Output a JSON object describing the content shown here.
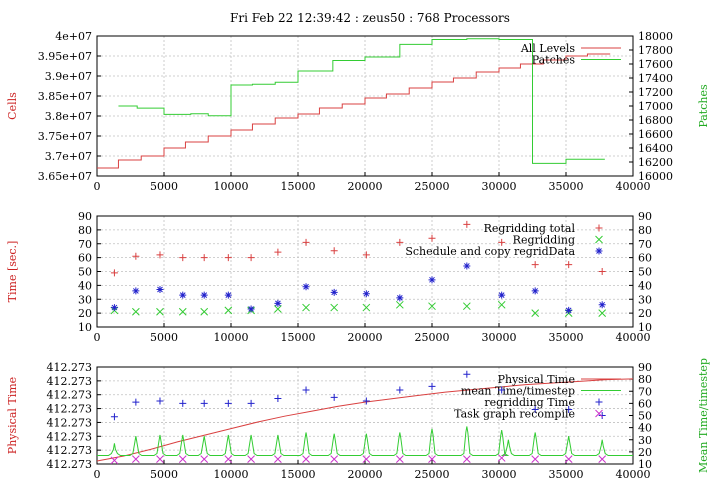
{
  "title": "Fri Feb 22 12:39:42 : zeus50 : 768 Processors",
  "colors": {
    "red": "#d94040",
    "green": "#33cc33",
    "blue": "#2222cc",
    "magenta": "#cc33cc",
    "grid": "#c0c0c0"
  },
  "chart_data": [
    {
      "type": "line",
      "xlim": [
        0,
        40000
      ],
      "xticks": [
        "0",
        "5000",
        "10000",
        "15000",
        "20000",
        "25000",
        "30000",
        "35000",
        "40000"
      ],
      "ylabel": "Cells",
      "y2label": "Patches",
      "ylim": [
        36500000,
        40000000
      ],
      "yticks": [
        "3.65e+07",
        "3.7e+07",
        "3.75e+07",
        "3.8e+07",
        "3.85e+07",
        "3.9e+07",
        "3.95e+07",
        "4e+07"
      ],
      "y2lim": [
        16000,
        18000
      ],
      "y2ticks": [
        "16000",
        "16200",
        "16400",
        "16600",
        "16800",
        "17000",
        "17200",
        "17400",
        "17600",
        "17800",
        "18000"
      ],
      "legend": "top-right",
      "series": [
        {
          "name": "All Levels",
          "axis": "left",
          "step": true,
          "x": [
            0,
            1600,
            3300,
            5000,
            6600,
            8300,
            10000,
            11600,
            13300,
            15000,
            16600,
            18300,
            20000,
            21600,
            23300,
            25000,
            26600,
            28300,
            30000,
            31600,
            33300,
            35000,
            36600,
            38000
          ],
          "y": [
            36700000,
            36900000,
            37000000,
            37200000,
            37350000,
            37500000,
            37650000,
            37800000,
            37950000,
            38050000,
            38200000,
            38300000,
            38450000,
            38550000,
            38700000,
            38850000,
            38950000,
            39100000,
            39200000,
            39300000,
            39400000,
            39500000,
            39550000,
            39550000
          ]
        },
        {
          "name": "Patches",
          "axis": "right",
          "step": true,
          "x": [
            1600,
            3000,
            5000,
            7000,
            8300,
            10000,
            11600,
            13300,
            15000,
            17600,
            20000,
            22600,
            25000,
            27600,
            30000,
            32500,
            35000,
            37600
          ],
          "y": [
            17000,
            16970,
            16880,
            16890,
            16860,
            17300,
            17310,
            17340,
            17500,
            17650,
            17700,
            17880,
            17950,
            17960,
            17950,
            16180,
            16240,
            16240
          ]
        }
      ]
    },
    {
      "type": "scatter",
      "xlim": [
        0,
        40000
      ],
      "xticks": [
        "0",
        "5000",
        "10000",
        "15000",
        "20000",
        "25000",
        "30000",
        "35000",
        "40000"
      ],
      "ylabel": "Time [sec.]",
      "ylim": [
        10,
        90
      ],
      "yticks": [
        "10",
        "20",
        "30",
        "40",
        "50",
        "60",
        "70",
        "80",
        "90"
      ],
      "y2ticks": [
        "10",
        "20",
        "30",
        "40",
        "50",
        "60",
        "70",
        "80",
        "90"
      ],
      "legend": "top-right",
      "series": [
        {
          "name": "Regridding total",
          "marker": "plus",
          "x": [
            1300,
            2900,
            4700,
            6400,
            8000,
            9800,
            11500,
            13500,
            15600,
            17700,
            20100,
            22600,
            25000,
            27600,
            30200,
            32700,
            35200,
            37700
          ],
          "y": [
            49,
            61,
            62,
            60,
            60,
            60,
            60,
            64,
            71,
            65,
            62,
            71,
            74,
            84,
            71,
            55,
            55,
            50
          ]
        },
        {
          "name": "Regridding",
          "marker": "x",
          "x": [
            1300,
            2900,
            4700,
            6400,
            8000,
            9800,
            11500,
            13500,
            15600,
            17700,
            20100,
            22600,
            25000,
            27600,
            30200,
            32700,
            35200,
            37700
          ],
          "y": [
            22,
            21,
            21,
            21,
            21,
            22,
            22,
            23,
            24,
            24,
            24,
            26,
            25,
            25,
            26,
            20,
            20,
            20
          ]
        },
        {
          "name": "Schedule and copy regridData",
          "marker": "star",
          "x": [
            1300,
            2900,
            4700,
            6400,
            8000,
            9800,
            11500,
            13500,
            15600,
            17700,
            20100,
            22600,
            25000,
            27600,
            30200,
            32700,
            35200,
            37700
          ],
          "y": [
            24,
            36,
            37,
            33,
            33,
            33,
            23,
            27,
            39,
            35,
            34,
            31,
            44,
            54,
            33,
            36,
            22,
            26
          ]
        }
      ]
    },
    {
      "type": "line",
      "xlim": [
        0,
        40000
      ],
      "xticks": [
        "0",
        "5000",
        "10000",
        "15000",
        "20000",
        "25000",
        "30000",
        "35000",
        "40000"
      ],
      "ylabel": "Physical Time",
      "yticks": [
        "412.273",
        "412.273",
        "412.273",
        "412.273",
        "412.273",
        "412.273",
        "412.273",
        "412.273"
      ],
      "y2label": "Mean Time/timestep",
      "y2lim": [
        10,
        90
      ],
      "y2ticks": [
        "10",
        "20",
        "30",
        "40",
        "50",
        "60",
        "70",
        "80",
        "90"
      ],
      "legend": "top-right",
      "series": [
        {
          "name": "Physical Time",
          "axis": "left",
          "x": [
            0,
            2000,
            4000,
            6000,
            8000,
            10000,
            12000,
            14000,
            16000,
            18000,
            20000,
            22000,
            24000,
            26000,
            28000,
            30000,
            32000,
            34000,
            36000,
            38000,
            40000
          ],
          "y": [
            0.0,
            0.06,
            0.14,
            0.23,
            0.31,
            0.39,
            0.47,
            0.54,
            0.6,
            0.66,
            0.71,
            0.75,
            0.79,
            0.83,
            0.86,
            0.89,
            0.92,
            0.94,
            0.96,
            0.98,
            0.99
          ]
        },
        {
          "name": "mean Time/timestep",
          "axis": "right",
          "baseline": 17,
          "x": [
            1300,
            2900,
            4700,
            6400,
            8000,
            9800,
            11500,
            13500,
            15600,
            17700,
            20100,
            22600,
            25000,
            27600,
            30200,
            30700,
            32700,
            35200,
            37700
          ],
          "y": [
            27,
            33,
            34,
            34,
            33,
            34,
            34,
            34,
            36,
            35,
            35,
            36,
            39,
            41,
            38,
            30,
            36,
            33,
            30
          ]
        },
        {
          "name": "regridding Time",
          "axis": "right",
          "marker": "plus",
          "x": [
            1300,
            2900,
            4700,
            6400,
            8000,
            9800,
            11500,
            13500,
            15600,
            17700,
            20100,
            22600,
            25000,
            27600,
            30200,
            32700,
            35200,
            37700
          ],
          "y": [
            49,
            61,
            62,
            60,
            60,
            60,
            60,
            64,
            71,
            65,
            62,
            71,
            74,
            84,
            71,
            55,
            55,
            50
          ]
        },
        {
          "name": "Task graph recompile",
          "axis": "right",
          "marker": "x",
          "x": [
            1300,
            2900,
            4700,
            6400,
            8000,
            9800,
            11500,
            13500,
            15600,
            17700,
            20100,
            22600,
            25000,
            27600,
            30200,
            32700,
            35200,
            37700
          ],
          "y": [
            13,
            14,
            14,
            14,
            14,
            14,
            14,
            14,
            14,
            14,
            14,
            14,
            14,
            14,
            15,
            14,
            14,
            14
          ]
        }
      ]
    }
  ]
}
